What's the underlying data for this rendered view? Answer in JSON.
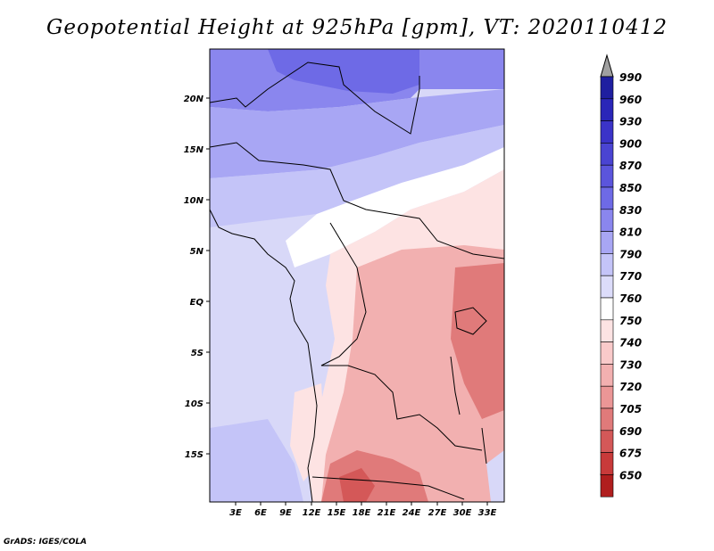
{
  "title": "Geopotential Height at 925hPa [gpm], VT: 2020110412",
  "credit": "GrADS: IGES/COLA",
  "map": {
    "lat_labels": [
      "20N",
      "15N",
      "10N",
      "5N",
      "EQ",
      "5S",
      "10S",
      "15S"
    ],
    "lon_labels": [
      "3E",
      "6E",
      "9E",
      "12E",
      "15E",
      "18E",
      "21E",
      "24E",
      "27E",
      "30E",
      "33E"
    ]
  },
  "colorbar": {
    "levels": [
      "990",
      "960",
      "930",
      "900",
      "870",
      "850",
      "830",
      "810",
      "790",
      "770",
      "760",
      "750",
      "740",
      "730",
      "720",
      "705",
      "690",
      "675",
      "650"
    ],
    "colors": [
      "#1f1fa0",
      "#2a26b8",
      "#3b33c8",
      "#4a44d2",
      "#5b55dc",
      "#6e6ae6",
      "#8a86ee",
      "#a8a6f4",
      "#c4c4f8",
      "#dcdcfa",
      "#ffffff",
      "#fde3e3",
      "#f9caca",
      "#f2b0b0",
      "#eb9696",
      "#e07a7a",
      "#d45858",
      "#c83a3a",
      "#b01e1e"
    ],
    "top_arrow_color": "#a0a0a0",
    "bottom_arrow_color": "#a81818"
  }
}
